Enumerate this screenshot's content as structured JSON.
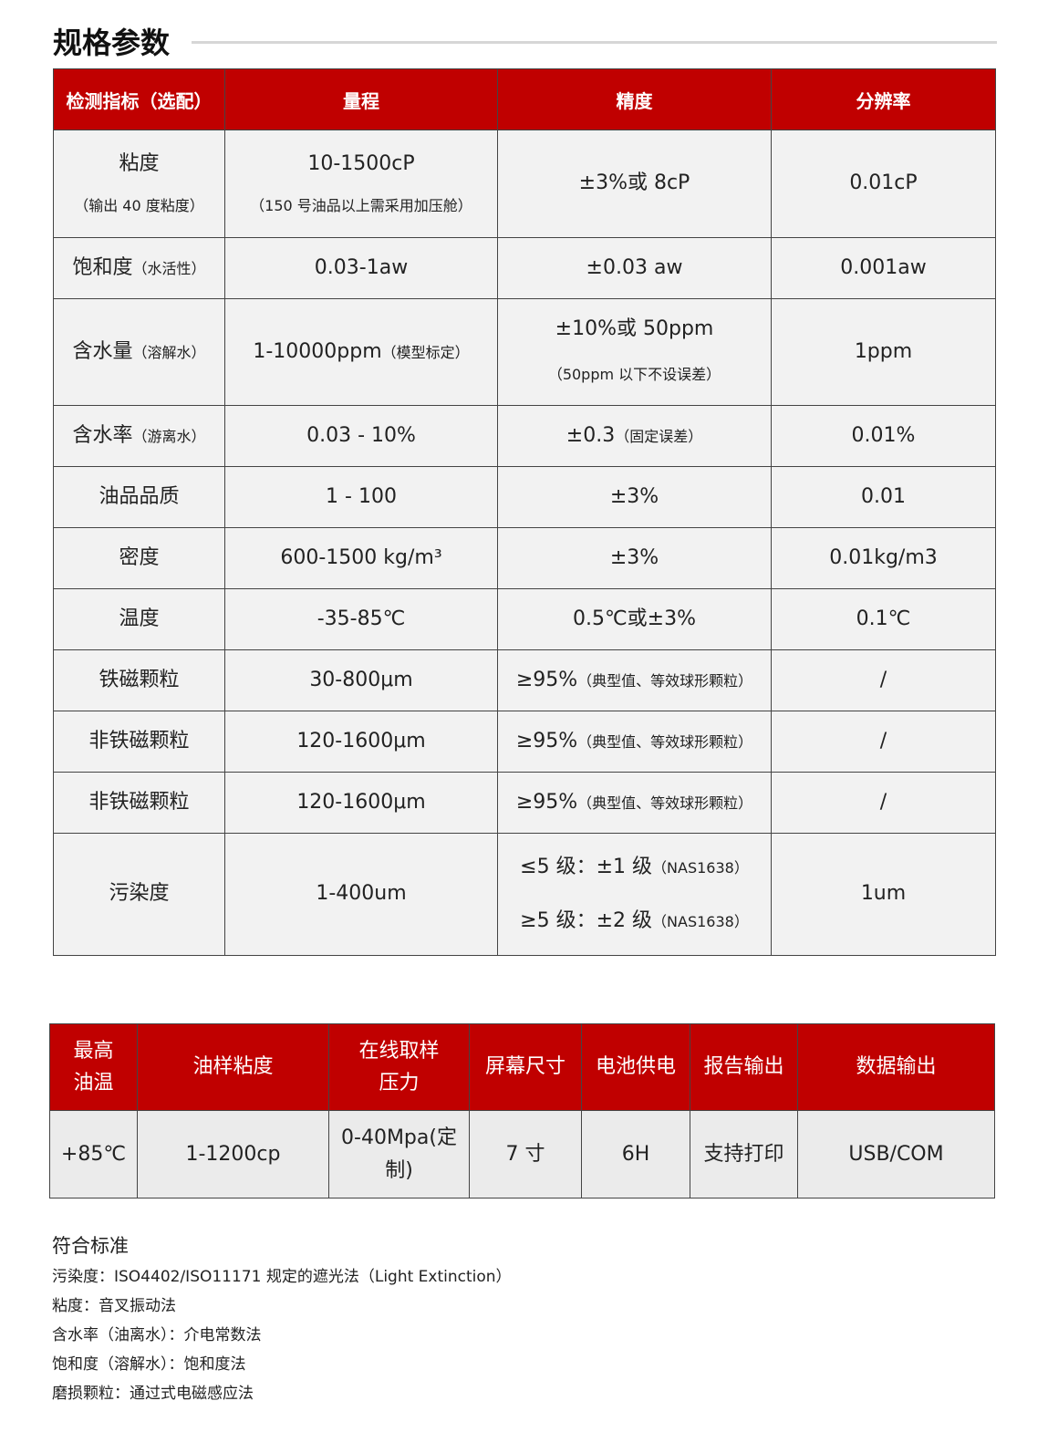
{
  "title": "规格参数",
  "spec_table": {
    "headers": [
      "检测指标（选配）",
      "量程",
      "精度",
      "分辨率"
    ],
    "rows": [
      {
        "name": "粘度",
        "name_note": "（输出 40 度粘度）",
        "range": "10-1500cP",
        "range_note": "（150 号油品以上需采用加压舱）",
        "accuracy": "±3%或 8cP",
        "accuracy_note": "",
        "resolution": "0.01cP"
      },
      {
        "name": "饱和度",
        "name_note": "（水活性）",
        "range": "0.03-1aw",
        "range_note": "",
        "accuracy": "±0.03 aw",
        "accuracy_note": "",
        "resolution": "0.001aw"
      },
      {
        "name": "含水量",
        "name_note": "（溶解水）",
        "range": "1-10000ppm",
        "range_note": "（模型标定）",
        "accuracy": "±10%或 50ppm",
        "accuracy_note": "（50ppm 以下不设误差）",
        "resolution": "1ppm"
      },
      {
        "name": "含水率",
        "name_note": "（游离水）",
        "range": "0.03 - 10%",
        "range_note": "",
        "accuracy": "±0.3",
        "accuracy_note": "（固定误差）",
        "resolution": "0.01%"
      },
      {
        "name": "油品品质",
        "name_note": "",
        "range": "1 - 100",
        "range_note": "",
        "accuracy": "±3%",
        "accuracy_note": "",
        "resolution": "0.01"
      },
      {
        "name": "密度",
        "name_note": "",
        "range": "600-1500 kg/m³",
        "range_note": "",
        "accuracy": "±3%",
        "accuracy_note": "",
        "resolution": "0.01kg/m3"
      },
      {
        "name": "温度",
        "name_note": "",
        "range": "-35-85℃",
        "range_note": "",
        "accuracy": "0.5℃或±3%",
        "accuracy_note": "",
        "resolution": "0.1℃"
      },
      {
        "name": "铁磁颗粒",
        "name_note": "",
        "range": "30-800μm",
        "range_note": "",
        "accuracy": "≥95%",
        "accuracy_note": "（典型值、等效球形颗粒）",
        "resolution": "/"
      },
      {
        "name": "非铁磁颗粒",
        "name_note": "",
        "range": "120-1600μm",
        "range_note": "",
        "accuracy": "≥95%",
        "accuracy_note": "（典型值、等效球形颗粒）",
        "resolution": "/"
      },
      {
        "name": "非铁磁颗粒",
        "name_note": "",
        "range": "120-1600μm",
        "range_note": "",
        "accuracy": "≥95%",
        "accuracy_note": "（典型值、等效球形颗粒）",
        "resolution": "/"
      }
    ],
    "pollution": {
      "name": "污染度",
      "range": "1-400um",
      "acc1": "≤5 级：±1 级",
      "acc1_note": "（NAS1638）",
      "acc2": "≥5 级：±2 级",
      "acc2_note": "（NAS1638）",
      "resolution": "1um"
    }
  },
  "summary_table": {
    "headers": [
      "最高\n油温",
      "油样粘度",
      "在线取样\n压力",
      "屏幕尺寸",
      "电池供电",
      "报告输出",
      "数据输出"
    ],
    "values": [
      "+85℃",
      "1-1200cp",
      "0-40Mpa(定\n制)",
      "7 寸",
      "6H",
      "支持打印",
      "USB/COM"
    ]
  },
  "standards": {
    "heading": "符合标准",
    "items": [
      "污染度：ISO4402/ISO11171 规定的遮光法（Light Extinction）",
      "粘度：音叉振动法",
      "含水率（油离水）：介电常数法",
      "饱和度（溶解水）：饱和度法",
      "磨损颗粒：通过式电磁感应法"
    ]
  },
  "colors": {
    "header_red": "#c00000",
    "cell_bg": "#f2f2f2"
  }
}
